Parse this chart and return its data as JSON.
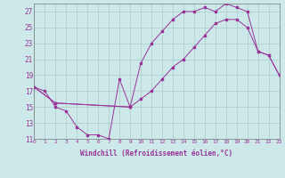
{
  "bg_color": "#cce8e8",
  "grid_color": "#aacccc",
  "line_color": "#993399",
  "xlabel": "Windchill (Refroidissement éolien,°C)",
  "xlim": [
    0,
    23
  ],
  "ylim": [
    11,
    28
  ],
  "xticks": [
    0,
    1,
    2,
    3,
    4,
    5,
    6,
    7,
    8,
    9,
    10,
    11,
    12,
    13,
    14,
    15,
    16,
    17,
    18,
    19,
    20,
    21,
    22,
    23
  ],
  "yticks": [
    11,
    13,
    15,
    17,
    19,
    21,
    23,
    25,
    27
  ],
  "line1_x": [
    0,
    1,
    2,
    3,
    4,
    5,
    6,
    7,
    8,
    9
  ],
  "line1_y": [
    17.5,
    17,
    15,
    14.5,
    12.5,
    11.5,
    11.5,
    11,
    18.5,
    15
  ],
  "line2_x": [
    0,
    2,
    9,
    10,
    11,
    12,
    13,
    14,
    15,
    16,
    17,
    18,
    19,
    20,
    21,
    22,
    23
  ],
  "line2_y": [
    17.5,
    15.5,
    15,
    16,
    17,
    18.5,
    20,
    21,
    22.5,
    24,
    25.5,
    26,
    26,
    25,
    22,
    21.5,
    19
  ],
  "line3_x": [
    0,
    2,
    9,
    10,
    11,
    12,
    13,
    14,
    15,
    16,
    17,
    18,
    19,
    20,
    21,
    22,
    23
  ],
  "line3_y": [
    17.5,
    15.5,
    15,
    20.5,
    23,
    24.5,
    26,
    27,
    27,
    27.5,
    27,
    28,
    27.5,
    27,
    22,
    21.5,
    19
  ]
}
